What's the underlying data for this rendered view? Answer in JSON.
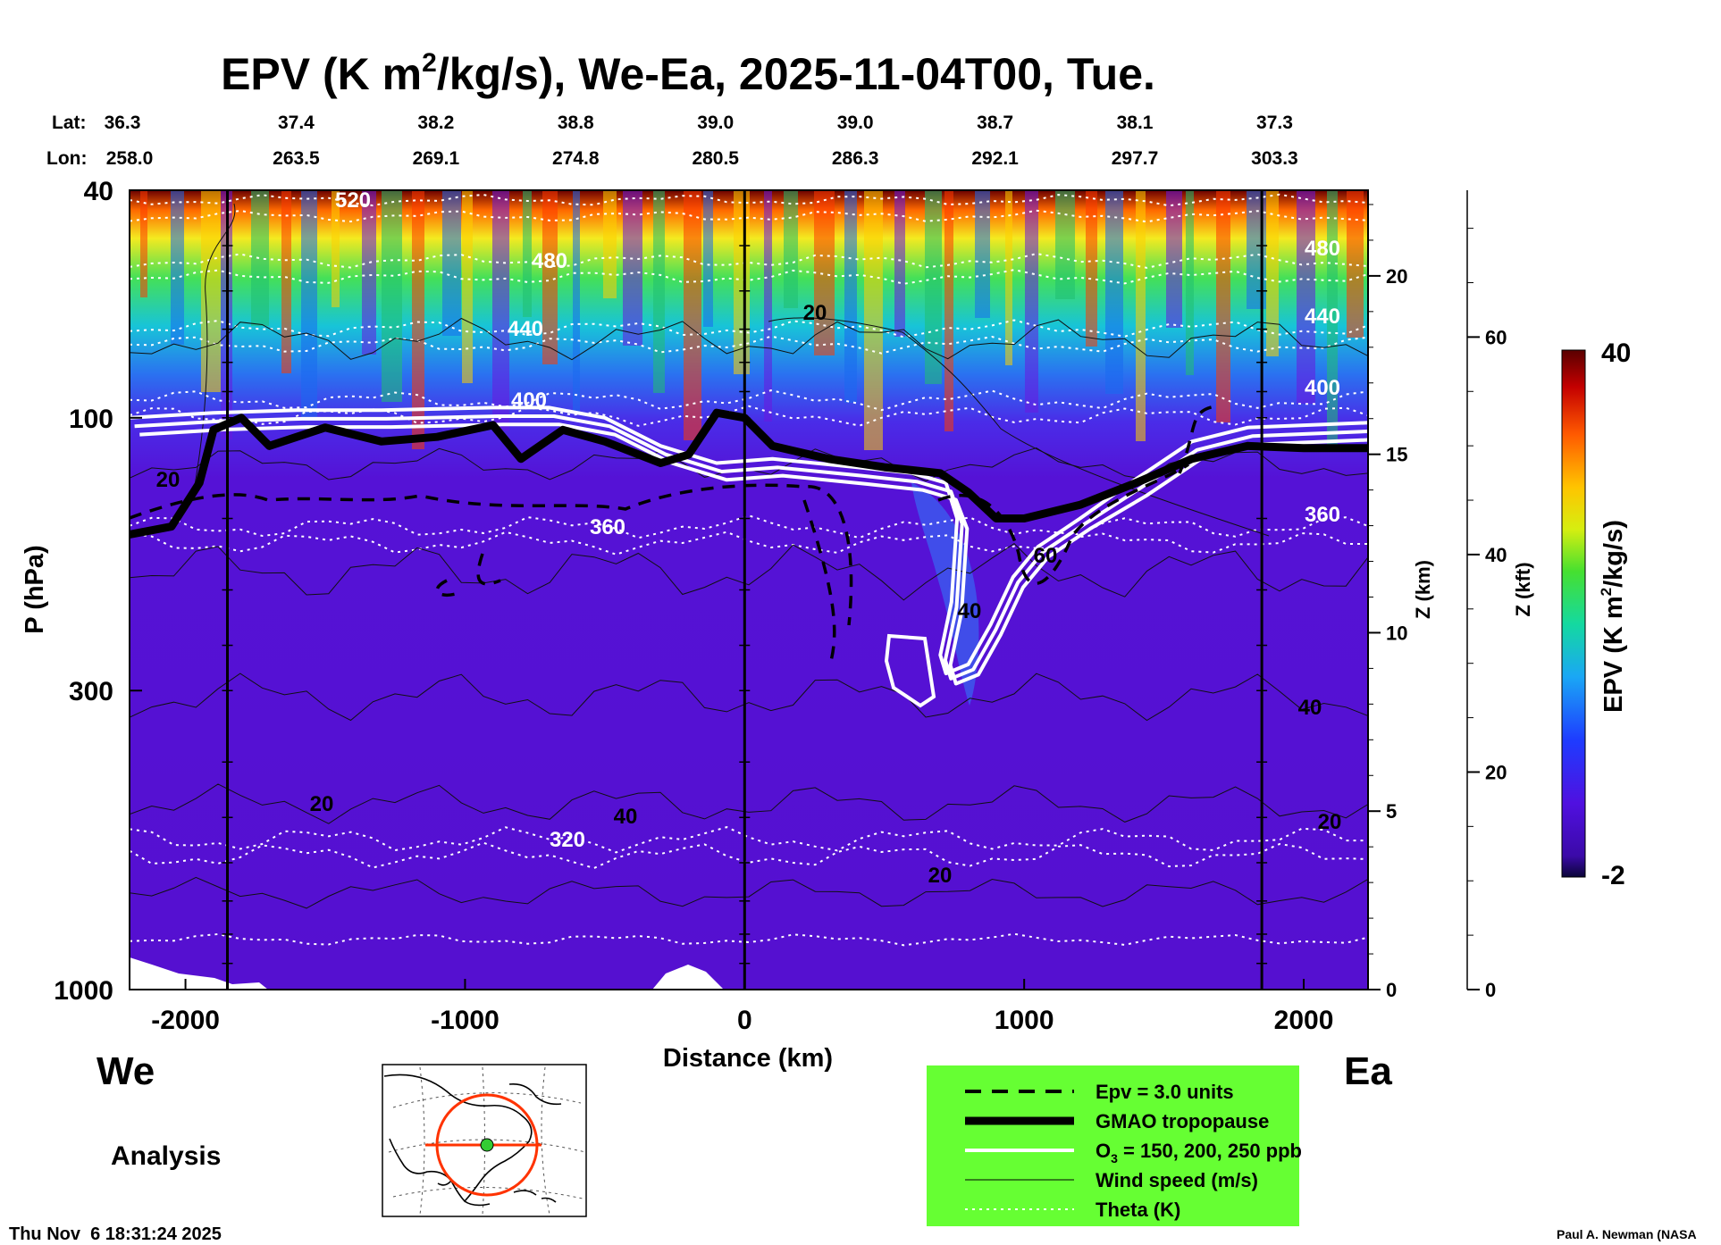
{
  "chart_data": {
    "type": "heatmap",
    "title": "EPV (K m²/kg/s), We-Ea, 2025-11-04T00, Tue.",
    "title_parts": {
      "before": "EPV (K m",
      "sup": "2",
      "after": "/kg/s), We-Ea, 2025-11-04T00, Tue."
    },
    "xlabel": "Distance (km)",
    "ylabel": "P (hPa)",
    "xlim": [
      -2200,
      2230
    ],
    "ylim": [
      1000,
      40
    ],
    "x_ticks": [
      "-2000",
      "-1000",
      "0",
      "1000",
      "2000"
    ],
    "x_tick_values": [
      -2000,
      -1000,
      0,
      1000,
      2000
    ],
    "y_ticks": [
      "40",
      "100",
      "300",
      "1000"
    ],
    "y_tick_values": [
      40,
      100,
      300,
      1000
    ],
    "z_km_label": "Z (km)",
    "z_km_ticks": [
      "0",
      "5",
      "10",
      "15",
      "20"
    ],
    "z_kft_label": "Z (kft)",
    "z_kft_ticks": [
      "0",
      "20",
      "40",
      "60"
    ],
    "colorbar": {
      "label": "EPV (K m²/kg/s)",
      "label_parts": {
        "before": "EPV (K m",
        "sup": "2",
        "after": "/kg/s)"
      },
      "min_label": "-2",
      "max_label": "40",
      "min": -2,
      "max": 40
    },
    "lat_label": "Lat:",
    "lon_label": "Lon:",
    "lat_values": [
      "36.3",
      "37.4",
      "38.2",
      "38.8",
      "39.0",
      "39.0",
      "38.7",
      "38.1",
      "37.3"
    ],
    "lon_values": [
      "258.0",
      "263.5",
      "269.1",
      "274.8",
      "280.5",
      "286.3",
      "292.1",
      "297.7",
      "303.3"
    ],
    "station_x_km": [
      -2200,
      -1700,
      -1200,
      -700,
      -200,
      300,
      800,
      1300,
      1800
    ],
    "vertical_markers_km": [
      -1850,
      0,
      1850
    ],
    "theta_levels": [
      {
        "label": "520",
        "value": 520
      },
      {
        "label": "480",
        "value": 480
      },
      {
        "label": "440",
        "value": 440
      },
      {
        "label": "400",
        "value": 400
      },
      {
        "label": "360",
        "value": 360
      },
      {
        "label": "320",
        "value": 320
      }
    ],
    "wind_labels": [
      "20",
      "20",
      "20",
      "40",
      "60",
      "20",
      "40",
      "40",
      "20"
    ],
    "tropopause_hpa": [
      [
        -2200,
        160
      ],
      [
        -2050,
        155
      ],
      [
        -1950,
        130
      ],
      [
        -1900,
        105
      ],
      [
        -1800,
        100
      ],
      [
        -1700,
        112
      ],
      [
        -1500,
        104
      ],
      [
        -1300,
        110
      ],
      [
        -1100,
        108
      ],
      [
        -900,
        103
      ],
      [
        -800,
        118
      ],
      [
        -650,
        105
      ],
      [
        -500,
        110
      ],
      [
        -300,
        120
      ],
      [
        -200,
        116
      ],
      [
        -100,
        98
      ],
      [
        0,
        100
      ],
      [
        100,
        112
      ],
      [
        300,
        118
      ],
      [
        500,
        122
      ],
      [
        700,
        125
      ],
      [
        800,
        135
      ],
      [
        900,
        150
      ],
      [
        1000,
        150
      ],
      [
        1200,
        142
      ],
      [
        1400,
        130
      ],
      [
        1600,
        118
      ],
      [
        1800,
        112
      ],
      [
        2000,
        113
      ],
      [
        2230,
        113
      ]
    ],
    "series": [
      {
        "name": "Epv = 3.0 units",
        "style": "dashed"
      },
      {
        "name": "GMAO tropopause",
        "style": "thick-solid"
      },
      {
        "name": "O₃ = 150, 200, 250 ppb",
        "name_parts": {
          "before": "O",
          "sub": "3",
          "after": " = 150, 200, 250 ppb"
        },
        "style": "white-triple"
      },
      {
        "name": "Wind speed (m/s)",
        "style": "thin-solid"
      },
      {
        "name": "Theta (K)",
        "style": "dotted-white"
      }
    ]
  },
  "labels": {
    "west": "We",
    "east": "Ea",
    "analysis": "Analysis",
    "timestamp": "Thu Nov  6 18:31:24 2025",
    "credit": "Paul A. Newman (NASA"
  },
  "colors": {
    "legend_bg": "#66ff33",
    "map_track": "#ff3300",
    "map_marker": "#33cc33"
  }
}
